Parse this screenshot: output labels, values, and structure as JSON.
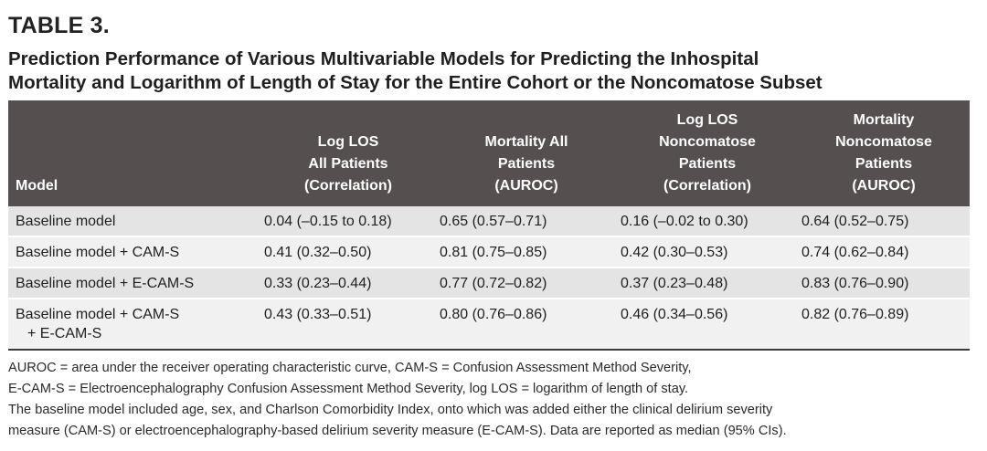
{
  "table": {
    "label": "TABLE 3.",
    "title_line1": "Prediction Performance of Various Multivariable Models for Predicting the Inhospital",
    "title_line2": "Mortality and Logarithm of Length of Stay for the Entire Cohort or the Noncomatose Subset",
    "columns": [
      {
        "lines": [
          "Model"
        ]
      },
      {
        "lines": [
          "Log LOS",
          "All Patients",
          "(Correlation)"
        ]
      },
      {
        "lines": [
          "Mortality All",
          "Patients",
          "(AUROC)"
        ]
      },
      {
        "lines": [
          "Log LOS",
          "Noncomatose",
          "Patients",
          "(Correlation)"
        ]
      },
      {
        "lines": [
          "Mortality",
          "Noncomatose",
          "Patients",
          "(AUROC)"
        ]
      }
    ],
    "rows": [
      {
        "model": [
          "Baseline model"
        ],
        "log_los_all": "0.04 (–0.15 to 0.18)",
        "mortality_all": "0.65 (0.57–0.71)",
        "log_los_noncomatose": "0.16 (–0.02 to 0.30)",
        "mortality_noncomatose": "0.64 (0.52–0.75)"
      },
      {
        "model": [
          "Baseline model + CAM-S"
        ],
        "log_los_all": "0.41 (0.32–0.50)",
        "mortality_all": "0.81 (0.75–0.85)",
        "log_los_noncomatose": "0.42 (0.30–0.53)",
        "mortality_noncomatose": "0.74 (0.62–0.84)"
      },
      {
        "model": [
          "Baseline model + E-CAM-S"
        ],
        "log_los_all": "0.33 (0.23–0.44)",
        "mortality_all": "0.77 (0.72–0.82)",
        "log_los_noncomatose": "0.37 (0.23–0.48)",
        "mortality_noncomatose": "0.83 (0.76–0.90)"
      },
      {
        "model": [
          "Baseline model + CAM-S",
          "+ E-CAM-S"
        ],
        "log_los_all": "0.43 (0.33–0.51)",
        "mortality_all": "0.80 (0.76–0.86)",
        "log_los_noncomatose": "0.46 (0.34–0.56)",
        "mortality_noncomatose": "0.82 (0.76–0.89)"
      }
    ],
    "footnotes": [
      "AUROC = area under the receiver operating characteristic curve, CAM-S = Confusion Assessment Method Severity,",
      "E-CAM-S = Electroencephalography Confusion Assessment Method Severity, log LOS = logarithm of length of stay.",
      "The baseline model included age, sex, and Charlson Comorbidity Index, onto which was added either the clinical delirium severity",
      "measure (CAM-S) or electroencephalography-based delirium severity measure (E-CAM-S). Data are reported as median (95% CIs)."
    ]
  }
}
